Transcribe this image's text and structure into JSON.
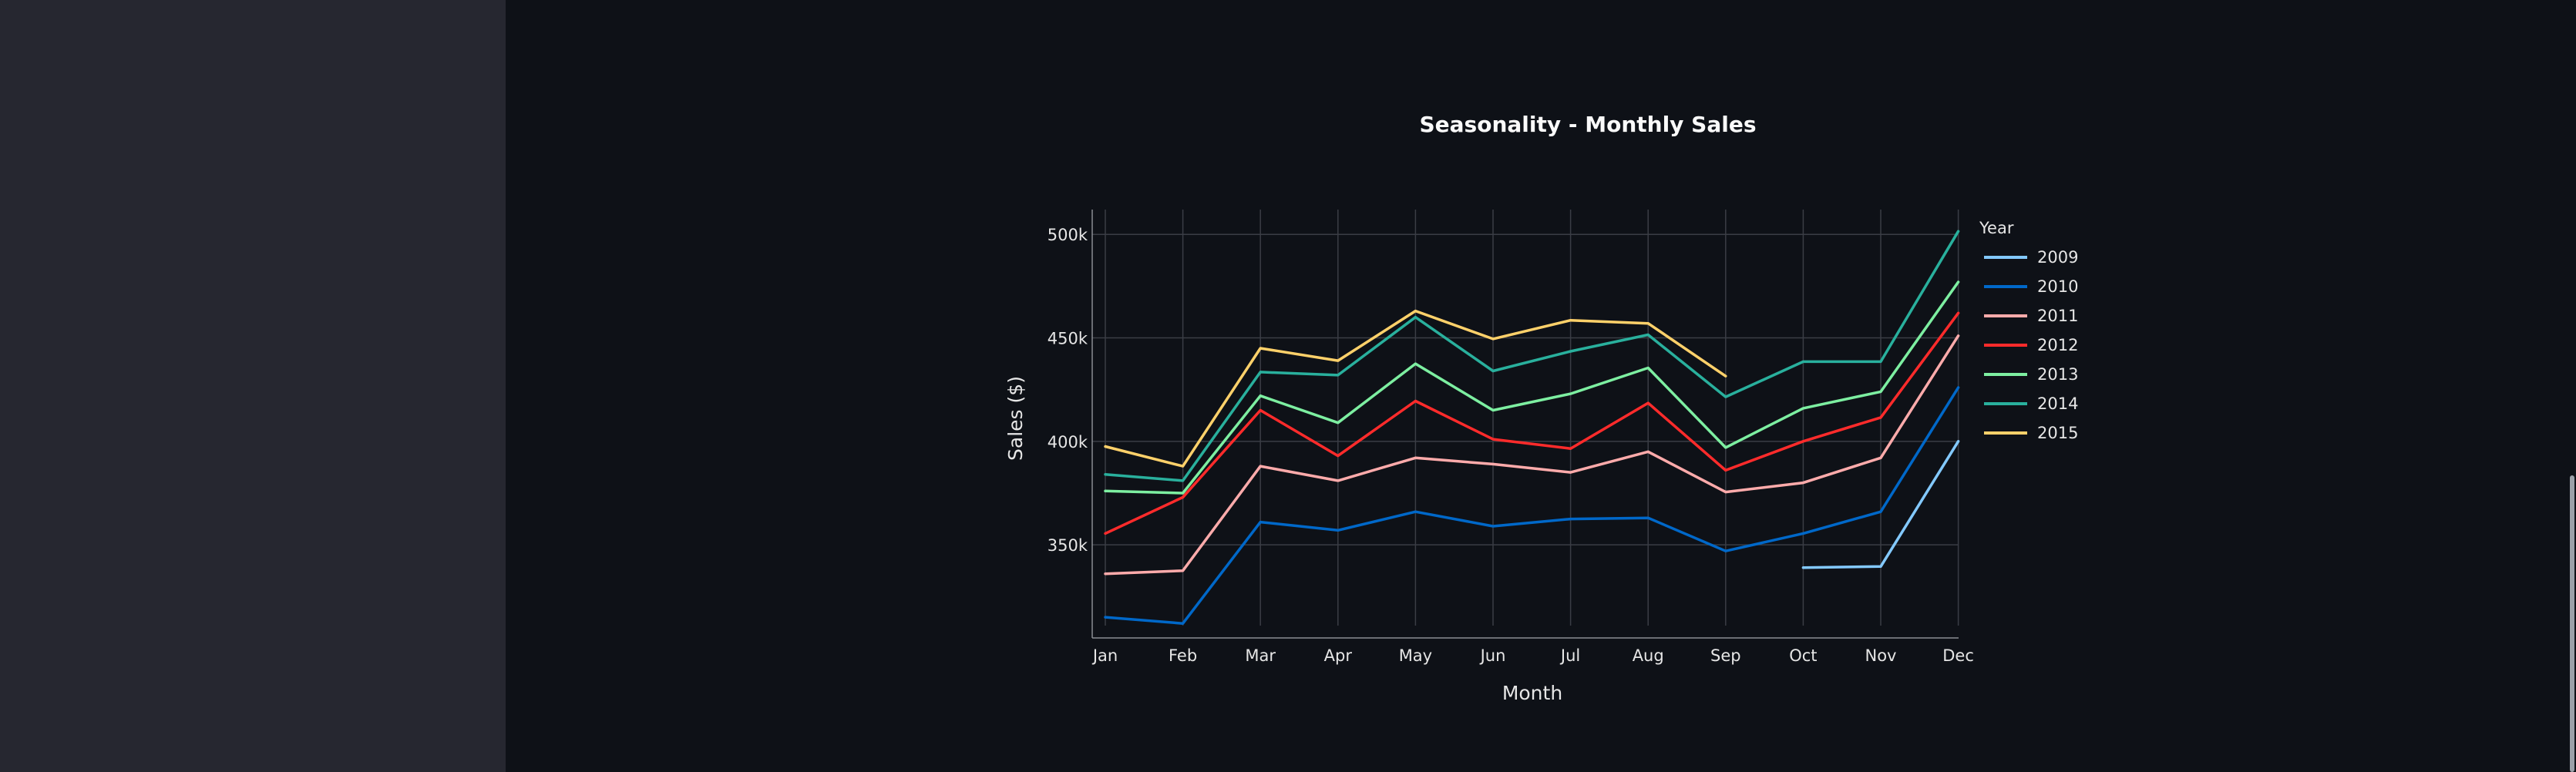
{
  "colors": {
    "background": "#0e1117",
    "sidebar": "#262730",
    "grid": "#3a3d45",
    "axis": "#8a8d93"
  },
  "chart_data": {
    "type": "line",
    "title": "Seasonality - Monthly Sales",
    "xlabel": "Month",
    "ylabel": "Sales ($)",
    "categories": [
      "Jan",
      "Feb",
      "Mar",
      "Apr",
      "May",
      "Jun",
      "Jul",
      "Aug",
      "Sep",
      "Oct",
      "Nov",
      "Dec"
    ],
    "ylim": [
      305000,
      512000
    ],
    "yticks": [
      350000,
      400000,
      450000,
      500000
    ],
    "ytick_labels": [
      "350k",
      "400k",
      "450k",
      "500k"
    ],
    "grid": true,
    "legend": {
      "title": "Year",
      "position": "right"
    },
    "series": [
      {
        "name": "2009",
        "color": "#83c9ff",
        "values": [
          null,
          null,
          null,
          null,
          null,
          null,
          null,
          null,
          null,
          339000,
          339500,
          400000
        ]
      },
      {
        "name": "2010",
        "color": "#0068c9",
        "values": [
          315000,
          312000,
          361000,
          357000,
          366000,
          359000,
          362500,
          363000,
          347000,
          355500,
          366000,
          426000
        ]
      },
      {
        "name": "2011",
        "color": "#ffabab",
        "values": [
          336000,
          337500,
          388000,
          381000,
          392000,
          389000,
          385000,
          395000,
          375500,
          380000,
          392000,
          451000
        ]
      },
      {
        "name": "2012",
        "color": "#ff2b2b",
        "values": [
          355500,
          373000,
          415000,
          393000,
          419500,
          401000,
          396500,
          418500,
          386000,
          400000,
          411500,
          462000
        ]
      },
      {
        "name": "2013",
        "color": "#7defa1",
        "values": [
          376000,
          375000,
          422000,
          409000,
          437500,
          415000,
          423000,
          435500,
          397000,
          416000,
          424000,
          477000
        ]
      },
      {
        "name": "2014",
        "color": "#29b09d",
        "values": [
          384000,
          381000,
          433500,
          432000,
          460000,
          434000,
          443500,
          451500,
          421500,
          438500,
          438500,
          501500
        ]
      },
      {
        "name": "2015",
        "color": "#ffd16a",
        "values": [
          397500,
          388000,
          445000,
          439000,
          463000,
          449500,
          458500,
          457000,
          431500,
          null,
          null,
          null
        ]
      }
    ]
  }
}
